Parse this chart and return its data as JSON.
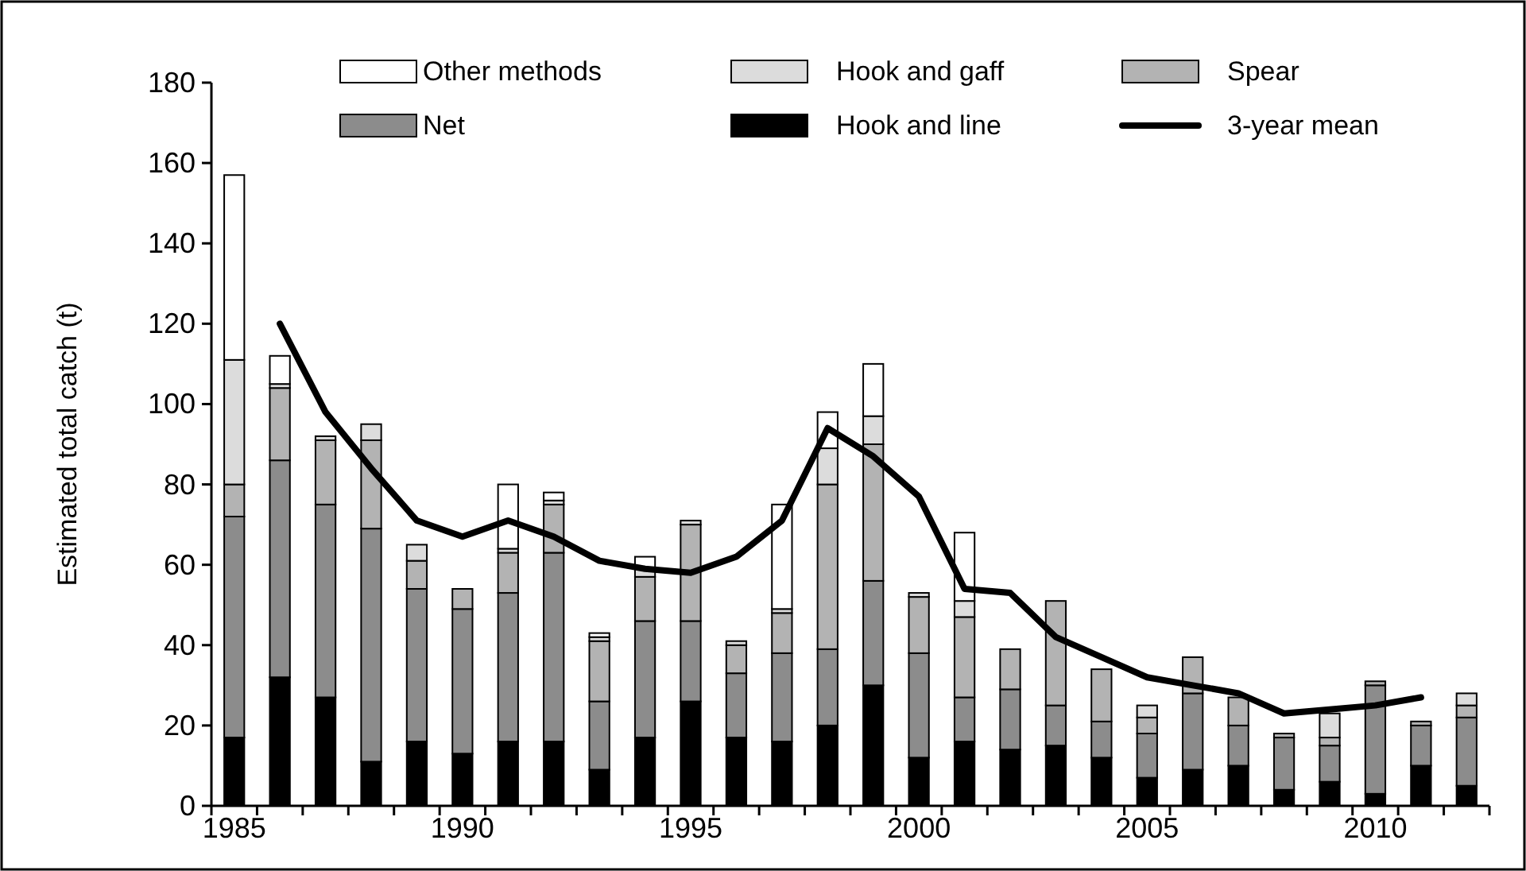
{
  "chart_data": {
    "type": "bar",
    "stacked": true,
    "ylabel": "Estimated total catch (t)",
    "categories": [
      "1985",
      null,
      null,
      null,
      null,
      "1990",
      null,
      null,
      null,
      null,
      "1995",
      null,
      null,
      null,
      null,
      "2000",
      null,
      null,
      null,
      null,
      "2005",
      null,
      null,
      null,
      null,
      "2010",
      null,
      null
    ],
    "ylim": [
      0,
      180
    ],
    "yticks": [
      0,
      20,
      40,
      60,
      80,
      100,
      120,
      140,
      160,
      180
    ],
    "grid": false,
    "legend": "top",
    "series": [
      {
        "name": "Hook and line",
        "color": "#000000",
        "values": [
          17,
          32,
          27,
          11,
          16,
          13,
          16,
          16,
          9,
          17,
          26,
          17,
          16,
          20,
          30,
          12,
          16,
          14,
          15,
          12,
          7,
          9,
          10,
          4,
          6,
          3,
          10,
          5
        ]
      },
      {
        "name": "Net",
        "color": "#8c8c8c",
        "values": [
          55,
          54,
          48,
          58,
          38,
          36,
          37,
          47,
          17,
          29,
          20,
          16,
          22,
          19,
          26,
          26,
          11,
          15,
          10,
          9,
          11,
          19,
          10,
          13,
          9,
          27,
          10,
          17
        ]
      },
      {
        "name": "Spear",
        "color": "#b3b3b3",
        "values": [
          8,
          18,
          16,
          22,
          7,
          5,
          10,
          12,
          15,
          11,
          24,
          7,
          10,
          41,
          34,
          14,
          20,
          10,
          26,
          13,
          4,
          9,
          7,
          1,
          2,
          1,
          1,
          3
        ]
      },
      {
        "name": "Hook and gaff",
        "color": "#dcdcdc",
        "values": [
          31,
          1,
          1,
          4,
          4,
          0,
          1,
          1,
          1,
          2,
          1,
          1,
          1,
          9,
          7,
          1,
          4,
          0,
          0,
          0,
          3,
          0,
          0,
          0,
          6,
          0,
          0,
          3
        ]
      },
      {
        "name": "Other methods",
        "color": "#ffffff",
        "values": [
          46,
          7,
          0,
          0,
          0,
          0,
          16,
          2,
          1,
          3,
          0,
          0,
          26,
          9,
          13,
          0,
          17,
          0,
          0,
          0,
          0,
          0,
          0,
          0,
          0,
          0,
          0,
          0
        ]
      },
      {
        "name": "3-year mean",
        "type": "line",
        "color": "#000000",
        "values": [
          null,
          120,
          98,
          84,
          71,
          67,
          71,
          67,
          61,
          59,
          58,
          62,
          71,
          94,
          87,
          77,
          54,
          53,
          42,
          37,
          32,
          30,
          28,
          23,
          24,
          25,
          27,
          null
        ]
      }
    ]
  }
}
